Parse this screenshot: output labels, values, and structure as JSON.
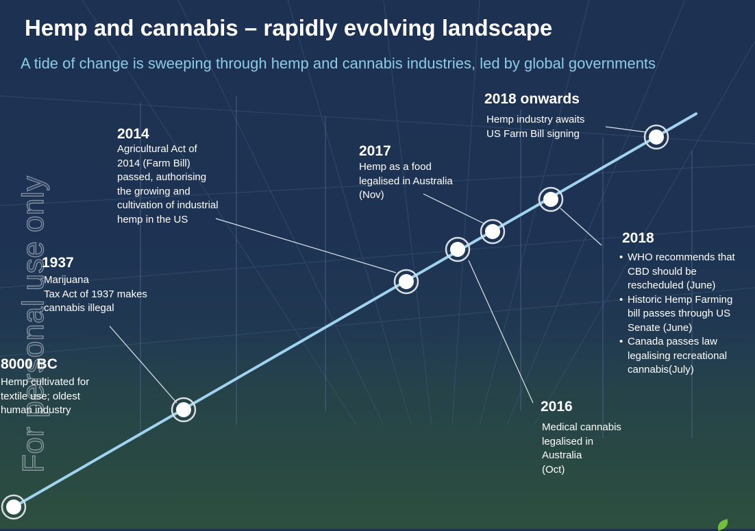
{
  "header": {
    "title": "Hemp and cannabis – rapidly evolving landscape",
    "subtitle": "A tide of change is sweeping through hemp and cannabis industries, led by global governments"
  },
  "watermark": "For personal use only",
  "colors": {
    "timeline": "#9fd3ef",
    "subtitle": "#8ccbe8",
    "text": "#ffffff",
    "marker": "#ffffff"
  },
  "events": [
    {
      "year": "8000 BC",
      "lines": [
        "Hemp cultivated for",
        "textile use; oldest",
        "human industry"
      ]
    },
    {
      "year": "1937",
      "lines": [
        "Marijuana",
        "Tax Act of 1937 makes",
        "cannabis illegal"
      ]
    },
    {
      "year": "2014",
      "lines": [
        "Agricultural Act of",
        "2014 (Farm Bill)",
        "passed, authorising",
        "the growing and",
        "cultivation of industrial",
        "hemp in the US"
      ]
    },
    {
      "year": "2016",
      "lines": [
        "Medical cannabis",
        "legalised in",
        "Australia",
        "(Oct)"
      ]
    },
    {
      "year": "2017",
      "lines": [
        "Hemp as a food",
        "legalised in Australia",
        "(Nov)"
      ]
    },
    {
      "year": "2018",
      "bullets": [
        [
          "WHO recommends that",
          "CBD should be",
          "rescheduled (June)"
        ],
        [
          "Historic Hemp Farming",
          "bill passes through US",
          "Senate (June)"
        ],
        [
          "Canada passes law",
          "legalising recreational",
          "cannabis(July)"
        ]
      ]
    },
    {
      "year": "2018 onwards",
      "lines": [
        "Hemp industry awaits",
        "US Farm Bill signing"
      ]
    }
  ]
}
